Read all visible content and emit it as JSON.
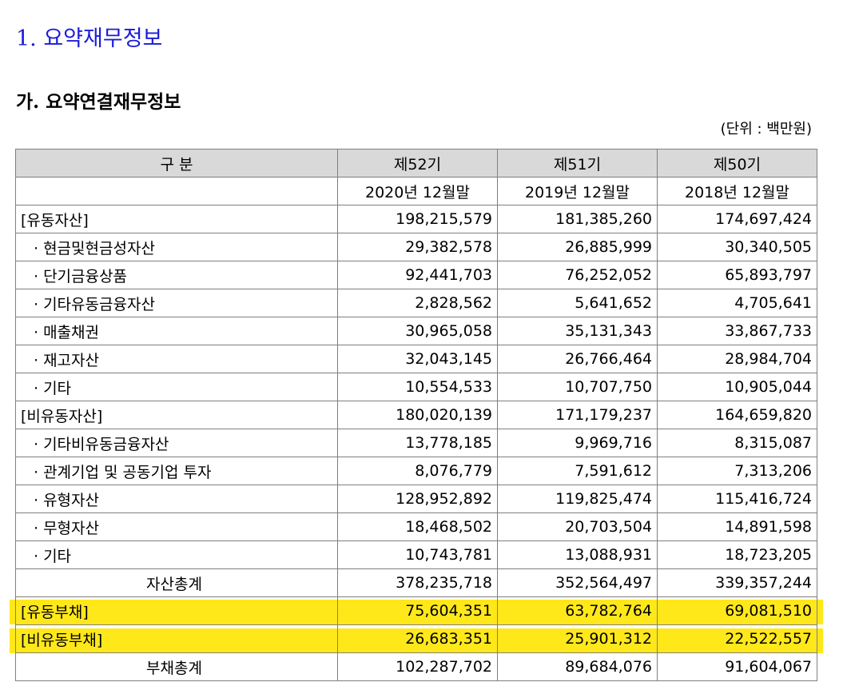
{
  "title": "1. 요약재무정보",
  "subtitle": "가. 요약연결재무정보",
  "unit": "(단위 : 백만원)",
  "header": {
    "col0": "구 분",
    "periods": [
      "제52기",
      "제51기",
      "제50기"
    ],
    "dates": [
      "2020년 12월말",
      "2019년 12월말",
      "2018년 12월말"
    ]
  },
  "rows": [
    {
      "label": "[유동자산]",
      "values": [
        "198,215,579",
        "181,385,260",
        "174,697,424"
      ]
    },
    {
      "label": "· 현금및현금성자산",
      "values": [
        "29,382,578",
        "26,885,999",
        "30,340,505"
      ]
    },
    {
      "label": "· 단기금융상품",
      "values": [
        "92,441,703",
        "76,252,052",
        "65,893,797"
      ]
    },
    {
      "label": "· 기타유동금융자산",
      "values": [
        "2,828,562",
        "5,641,652",
        "4,705,641"
      ]
    },
    {
      "label": "· 매출채권",
      "values": [
        "30,965,058",
        "35,131,343",
        "33,867,733"
      ]
    },
    {
      "label": "· 재고자산",
      "values": [
        "32,043,145",
        "26,766,464",
        "28,984,704"
      ]
    },
    {
      "label": "· 기타",
      "values": [
        "10,554,533",
        "10,707,750",
        "10,905,044"
      ]
    },
    {
      "label": "[비유동자산]",
      "values": [
        "180,020,139",
        "171,179,237",
        "164,659,820"
      ]
    },
    {
      "label": "· 기타비유동금융자산",
      "values": [
        "13,778,185",
        "9,969,716",
        "8,315,087"
      ]
    },
    {
      "label": "· 관계기업 및 공동기업 투자",
      "values": [
        "8,076,779",
        "7,591,612",
        "7,313,206"
      ]
    },
    {
      "label": "· 유형자산",
      "values": [
        "128,952,892",
        "119,825,474",
        "115,416,724"
      ]
    },
    {
      "label": "· 무형자산",
      "values": [
        "18,468,502",
        "20,703,504",
        "14,891,598"
      ]
    },
    {
      "label": "· 기타",
      "values": [
        "10,743,781",
        "13,088,931",
        "18,723,205"
      ]
    },
    {
      "label": "자산총계",
      "values": [
        "378,235,718",
        "352,564,497",
        "339,357,244"
      ]
    },
    {
      "label": "[유동부채]",
      "values": [
        "75,604,351",
        "63,782,764",
        "69,081,510"
      ]
    },
    {
      "label": "[비유동부채]",
      "values": [
        "26,683,351",
        "25,901,312",
        "22,522,557"
      ]
    },
    {
      "label": "부채총계",
      "values": [
        "102,287,702",
        "89,684,076",
        "91,604,067"
      ]
    }
  ],
  "highlight_color": "#ffe81a"
}
